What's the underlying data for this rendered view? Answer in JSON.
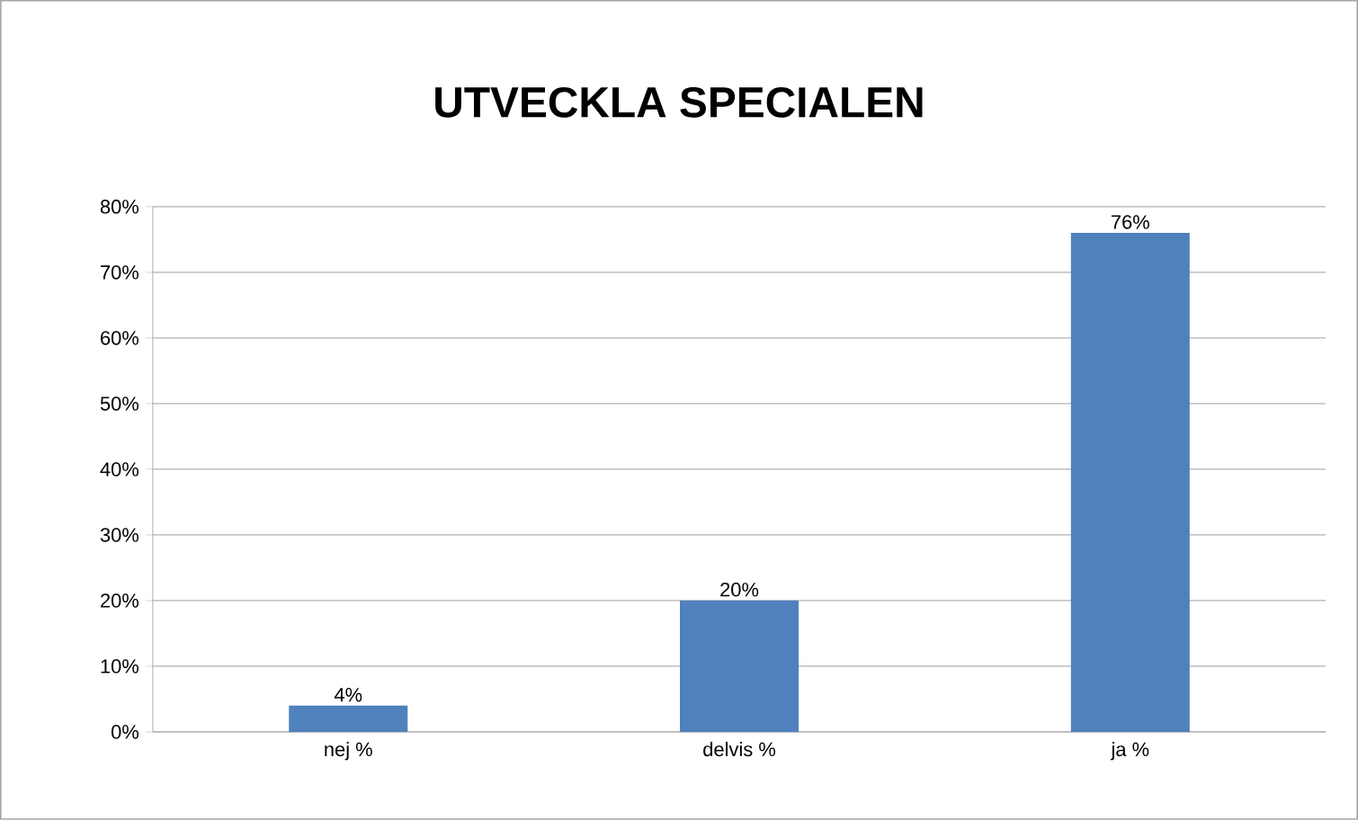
{
  "chart_data": {
    "type": "bar",
    "title": "UTVECKLA SPECIALEN",
    "categories": [
      "nej %",
      "delvis %",
      "ja %"
    ],
    "values": [
      4,
      20,
      76
    ],
    "color": "#4f81bd",
    "value_labels": [
      "4%",
      "20%",
      "76%"
    ],
    "ylim": [
      0,
      80
    ],
    "yticks": [
      {
        "value": 0,
        "label": "0%"
      },
      {
        "value": 10,
        "label": "10%"
      },
      {
        "value": 20,
        "label": "20%"
      },
      {
        "value": 30,
        "label": "30%"
      },
      {
        "value": 40,
        "label": "40%"
      },
      {
        "value": 50,
        "label": "50%"
      },
      {
        "value": 60,
        "label": "60%"
      },
      {
        "value": 70,
        "label": "70%"
      },
      {
        "value": 80,
        "label": "80%"
      }
    ],
    "grid": "y"
  }
}
